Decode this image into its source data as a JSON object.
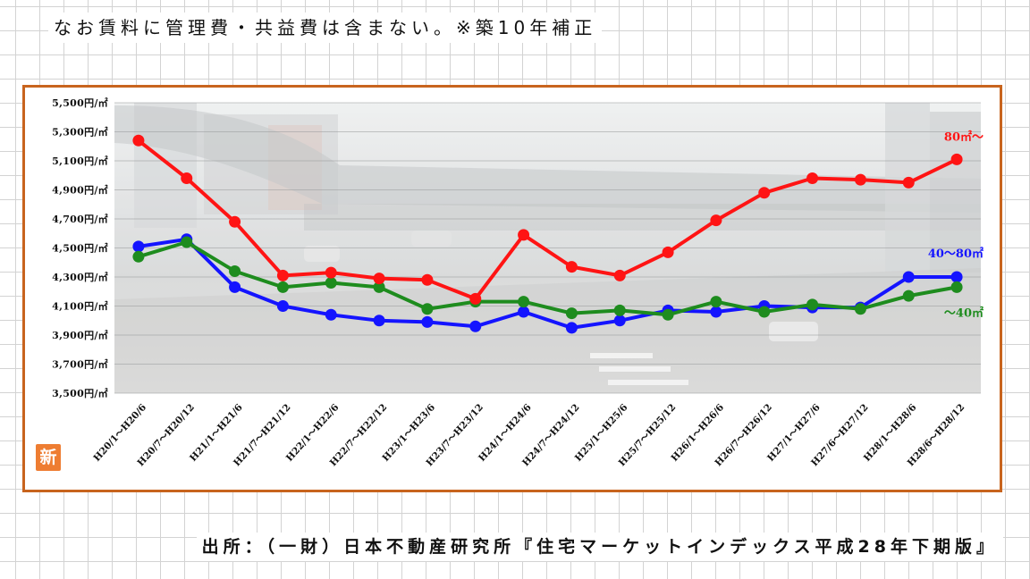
{
  "note": "なお賃料に管理費・共益費は含まない。※築10年補正",
  "source": "出所：（一財）日本不動産研究所『住宅マーケットインデックス平成28年下期版』",
  "logo_char": "新",
  "colors": {
    "frame": "#c8641e",
    "logo_background": "#ee7d32",
    "paper_grid": "#d3d3d3"
  },
  "chart_data": {
    "type": "line",
    "categories": [
      "H20/1～H20/6",
      "H20/7～H20/12",
      "H21/1～H21/6",
      "H21/7～H21/12",
      "H22/1～H22/6",
      "H22/7～H22/12",
      "H23/1～H23/6",
      "H23/7～H23/12",
      "H24/1～H24/6",
      "H24/7～H24/12",
      "H25/1～H25/6",
      "H25/7～H25/12",
      "H26/1～H26/6",
      "H26/7～H26/12",
      "H27/1～H27/6",
      "H27/6～H27/12",
      "H28/1～H28/6",
      "H28/6～H28/12"
    ],
    "ylim": [
      3500,
      5500
    ],
    "yticks": [
      5500,
      5300,
      5100,
      4900,
      4700,
      4500,
      4300,
      4100,
      3900,
      3700,
      3500
    ],
    "ytick_labels": [
      "5,500円/㎡",
      "5,300円/㎡",
      "5,100円/㎡",
      "4,900円/㎡",
      "4,700円/㎡",
      "4,500円/㎡",
      "4,300円/㎡",
      "4,100円/㎡",
      "3,900円/㎡",
      "3,700円/㎡",
      "3,500円/㎡"
    ],
    "grid": true,
    "series": [
      {
        "name": "80㎡～",
        "color": "#ff1414",
        "values": [
          5240,
          4980,
          4680,
          4310,
          4330,
          4290,
          4280,
          4150,
          4590,
          4370,
          4310,
          4470,
          4690,
          4880,
          4980,
          4970,
          4950,
          5110
        ]
      },
      {
        "name": "40～80㎡",
        "color": "#1414ff",
        "values": [
          4510,
          4560,
          4230,
          4100,
          4040,
          4000,
          3990,
          3960,
          4060,
          3950,
          4000,
          4070,
          4060,
          4100,
          4090,
          4090,
          4300,
          4300
        ]
      },
      {
        "name": "～40㎡",
        "color": "#1e8c1e",
        "values": [
          4440,
          4540,
          4340,
          4230,
          4260,
          4230,
          4080,
          4130,
          4130,
          4050,
          4070,
          4040,
          4130,
          4060,
          4110,
          4080,
          4170,
          4230
        ]
      }
    ]
  }
}
